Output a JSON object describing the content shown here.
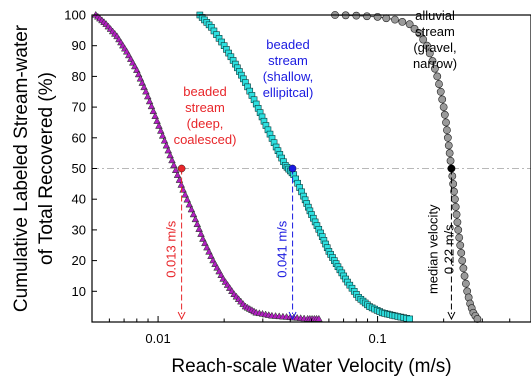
{
  "chart_data": {
    "type": "scatter",
    "xscale": "log",
    "xlim": [
      0.005,
      0.5
    ],
    "ylim": [
      0,
      100
    ],
    "xlabel": "Reach-scale Water Velocity (m/s)",
    "ylabel_lines": [
      "Cumulative Labeled Stream-water",
      "of Total Recovered (%)"
    ],
    "xticks": [
      {
        "value": 0.01,
        "label": "0.01"
      },
      {
        "value": 0.1,
        "label": "0.1"
      }
    ],
    "yticks": [
      10,
      20,
      30,
      40,
      50,
      60,
      70,
      80,
      90,
      100
    ],
    "reference_line": {
      "y": 50,
      "style": "dash-dot",
      "color": "#b8b8b8"
    },
    "series": [
      {
        "label_lines": [
          "beaded",
          "stream",
          "(deep,",
          "coalesced)"
        ],
        "label_color": "#e8262a",
        "marker": "triangle",
        "fill": "#b11ec0",
        "line_color": "#1f8a3a",
        "points": [
          [
            0.0052,
            100
          ],
          [
            0.0058,
            97
          ],
          [
            0.0065,
            93
          ],
          [
            0.0072,
            88
          ],
          [
            0.008,
            82
          ],
          [
            0.0088,
            75
          ],
          [
            0.0097,
            67
          ],
          [
            0.0107,
            59
          ],
          [
            0.0118,
            51
          ],
          [
            0.013,
            43
          ],
          [
            0.0145,
            35
          ],
          [
            0.016,
            27
          ],
          [
            0.0178,
            20
          ],
          [
            0.0198,
            14
          ],
          [
            0.0222,
            9
          ],
          [
            0.025,
            5
          ],
          [
            0.028,
            3
          ],
          [
            0.033,
            2
          ],
          [
            0.04,
            1.5
          ],
          [
            0.048,
            1
          ],
          [
            0.054,
            1
          ]
        ],
        "median": {
          "x": 0.0128,
          "y": 50,
          "label": "0.013 m/s",
          "color": "#e8262a"
        }
      },
      {
        "label_lines": [
          "beaded",
          "stream",
          "(shallow,",
          "ellipitcal)"
        ],
        "label_color": "#1a1ae0",
        "marker": "square",
        "fill": "#2ee0e0",
        "line_color": "#1f8a3a",
        "points": [
          [
            0.0155,
            100
          ],
          [
            0.0175,
            96
          ],
          [
            0.02,
            90
          ],
          [
            0.0225,
            84
          ],
          [
            0.025,
            78
          ],
          [
            0.028,
            71
          ],
          [
            0.031,
            64
          ],
          [
            0.0345,
            57
          ],
          [
            0.038,
            51
          ],
          [
            0.0415,
            48
          ],
          [
            0.046,
            41
          ],
          [
            0.05,
            35
          ],
          [
            0.055,
            29
          ],
          [
            0.06,
            23
          ],
          [
            0.066,
            18
          ],
          [
            0.073,
            13
          ],
          [
            0.082,
            8
          ],
          [
            0.092,
            5
          ],
          [
            0.105,
            3
          ],
          [
            0.12,
            2
          ],
          [
            0.14,
            1
          ]
        ],
        "median": {
          "x": 0.041,
          "y": 50,
          "label": "0.041 m/s",
          "color": "#1a1ae0"
        }
      },
      {
        "label_lines": [
          "alluvial",
          "stream",
          "(gravel,",
          "narrow)"
        ],
        "label_color": "#000000",
        "marker": "circle",
        "fill": "#9a9a9a",
        "line_color": "#555555",
        "points": [
          [
            0.064,
            100
          ],
          [
            0.08,
            99.8
          ],
          [
            0.1,
            99.4
          ],
          [
            0.12,
            98.5
          ],
          [
            0.14,
            97
          ],
          [
            0.155,
            94
          ],
          [
            0.168,
            90
          ],
          [
            0.178,
            85
          ],
          [
            0.187,
            80
          ],
          [
            0.194,
            75
          ],
          [
            0.2,
            70
          ],
          [
            0.205,
            65
          ],
          [
            0.209,
            60
          ],
          [
            0.213,
            55
          ],
          [
            0.217,
            50
          ],
          [
            0.221,
            45
          ],
          [
            0.225,
            40
          ],
          [
            0.229,
            35
          ],
          [
            0.233,
            30
          ],
          [
            0.238,
            25
          ],
          [
            0.243,
            20
          ],
          [
            0.249,
            15
          ],
          [
            0.256,
            10
          ],
          [
            0.264,
            6
          ],
          [
            0.273,
            3
          ],
          [
            0.285,
            1
          ]
        ],
        "median": {
          "x": 0.217,
          "y": 50,
          "label_lines": [
            "median velocity",
            "0.22 m/s"
          ],
          "color": "#000000"
        }
      }
    ]
  }
}
